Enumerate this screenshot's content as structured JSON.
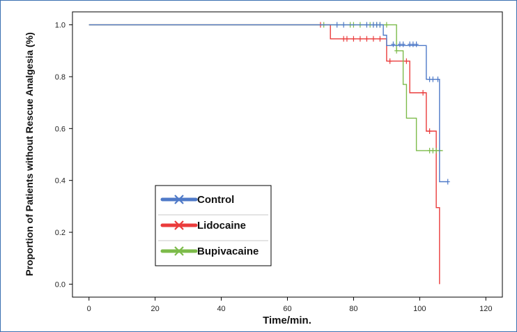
{
  "chart_data": {
    "type": "line",
    "subtype": "kaplan-meier step",
    "title": "",
    "xlabel": "Time/min.",
    "ylabel": "Proportion of Patients without Rescue Analgesia (%)",
    "xlim": [
      -5,
      125
    ],
    "ylim": [
      -0.05,
      1.05
    ],
    "x_ticks": [
      0,
      20,
      40,
      60,
      80,
      100,
      120
    ],
    "y_ticks": [
      0.0,
      0.2,
      0.4,
      0.6,
      0.8,
      1.0
    ],
    "x_tick_labels": [
      "0",
      "20",
      "40",
      "60",
      "80",
      "100",
      "120"
    ],
    "y_tick_labels": [
      "0.0",
      "0.2",
      "0.4",
      "0.6",
      "0.8",
      "1.0"
    ],
    "grid": false,
    "legend_position": "lower-left",
    "series": [
      {
        "name": "Control",
        "color": "#4f7ac8",
        "steps": [
          [
            0,
            1.0
          ],
          [
            89,
            1.0
          ],
          [
            89,
            0.96
          ],
          [
            90,
            0.96
          ],
          [
            90,
            0.92
          ],
          [
            102,
            0.92
          ],
          [
            102,
            0.79
          ],
          [
            106,
            0.79
          ],
          [
            106,
            0.395
          ],
          [
            108.5,
            0.395
          ]
        ],
        "censored": [
          [
            75,
            1.0
          ],
          [
            77,
            1.0
          ],
          [
            84,
            1.0
          ],
          [
            86,
            1.0
          ],
          [
            87,
            1.0
          ],
          [
            88,
            1.0
          ],
          [
            92,
            0.925
          ],
          [
            94,
            0.925
          ],
          [
            95,
            0.925
          ],
          [
            97,
            0.925
          ],
          [
            98,
            0.925
          ],
          [
            99,
            0.925
          ],
          [
            103,
            0.79
          ],
          [
            104,
            0.79
          ],
          [
            105.5,
            0.79
          ],
          [
            108.5,
            0.395
          ]
        ]
      },
      {
        "name": "Lidocaine",
        "color": "#ea3b3b",
        "steps": [
          [
            0,
            1.0
          ],
          [
            73,
            1.0
          ],
          [
            73,
            0.946
          ],
          [
            90,
            0.946
          ],
          [
            90,
            0.86
          ],
          [
            97,
            0.86
          ],
          [
            97,
            0.738
          ],
          [
            102,
            0.738
          ],
          [
            102,
            0.59
          ],
          [
            105,
            0.59
          ],
          [
            105,
            0.295
          ],
          [
            106,
            0.295
          ],
          [
            106,
            0.0
          ]
        ],
        "censored": [
          [
            70,
            1.0
          ],
          [
            77,
            0.946
          ],
          [
            78,
            0.946
          ],
          [
            80,
            0.946
          ],
          [
            82,
            0.946
          ],
          [
            84,
            0.946
          ],
          [
            86,
            0.946
          ],
          [
            88,
            0.946
          ],
          [
            91,
            0.86
          ],
          [
            96,
            0.86
          ],
          [
            101,
            0.738
          ],
          [
            103,
            0.59
          ]
        ]
      },
      {
        "name": "Bupivacaine",
        "color": "#7cbb4a",
        "steps": [
          [
            0,
            1.0
          ],
          [
            93,
            1.0
          ],
          [
            93,
            0.9
          ],
          [
            95,
            0.9
          ],
          [
            95,
            0.77
          ],
          [
            96,
            0.77
          ],
          [
            96,
            0.64
          ],
          [
            99,
            0.64
          ],
          [
            99,
            0.515
          ],
          [
            107,
            0.515
          ]
        ],
        "censored": [
          [
            71,
            1.0
          ],
          [
            79,
            1.0
          ],
          [
            80,
            1.0
          ],
          [
            82,
            1.0
          ],
          [
            85,
            1.0
          ],
          [
            86,
            1.0
          ],
          [
            87,
            1.0
          ],
          [
            88,
            1.0
          ],
          [
            90,
            1.0
          ],
          [
            93,
            0.9
          ],
          [
            103,
            0.515
          ],
          [
            104,
            0.515
          ],
          [
            105,
            0.515
          ],
          [
            106,
            0.515
          ]
        ]
      }
    ]
  }
}
